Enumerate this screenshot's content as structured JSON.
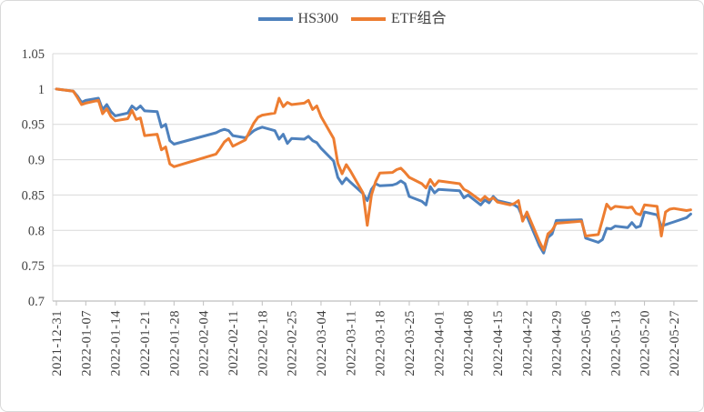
{
  "chart_data": {
    "type": "line",
    "legend_position": "top",
    "grid": true,
    "colors": {
      "gridline": "#D9D9D9",
      "axis_line": "#BFBFBF",
      "text": "#404040",
      "series1": "#4E81BD",
      "series2": "#ED7D31"
    },
    "ylim": [
      0.7,
      1.05
    ],
    "y_ticks": [
      {
        "value": 0.7,
        "label": "0.7"
      },
      {
        "value": 0.75,
        "label": "0.75"
      },
      {
        "value": 0.8,
        "label": "0.8"
      },
      {
        "value": 0.85,
        "label": "0.85"
      },
      {
        "value": 0.9,
        "label": "0.9"
      },
      {
        "value": 0.95,
        "label": "0.95"
      },
      {
        "value": 1,
        "label": "1"
      },
      {
        "value": 1.05,
        "label": "1.05"
      }
    ],
    "x_axis_total_days": 152,
    "x_ticks": [
      {
        "day": 0,
        "label": "2021-12-31"
      },
      {
        "day": 7,
        "label": "2022-01-07"
      },
      {
        "day": 14,
        "label": "2022-01-14"
      },
      {
        "day": 21,
        "label": "2022-01-21"
      },
      {
        "day": 28,
        "label": "2022-01-28"
      },
      {
        "day": 35,
        "label": "2022-02-04"
      },
      {
        "day": 42,
        "label": "2022-02-11"
      },
      {
        "day": 49,
        "label": "2022-02-18"
      },
      {
        "day": 56,
        "label": "2022-02-25"
      },
      {
        "day": 63,
        "label": "2022-03-04"
      },
      {
        "day": 70,
        "label": "2022-03-11"
      },
      {
        "day": 77,
        "label": "2022-03-18"
      },
      {
        "day": 84,
        "label": "2022-03-25"
      },
      {
        "day": 91,
        "label": "2022-04-01"
      },
      {
        "day": 98,
        "label": "2022-04-08"
      },
      {
        "day": 105,
        "label": "2022-04-15"
      },
      {
        "day": 112,
        "label": "2022-04-22"
      },
      {
        "day": 119,
        "label": "2022-04-29"
      },
      {
        "day": 126,
        "label": "2022-05-06"
      },
      {
        "day": 133,
        "label": "2022-05-13"
      },
      {
        "day": 140,
        "label": "2022-05-20"
      },
      {
        "day": 147,
        "label": "2022-05-27"
      }
    ],
    "x_days": [
      0,
      4,
      5,
      6,
      7,
      10,
      11,
      12,
      13,
      14,
      17,
      18,
      19,
      20,
      21,
      24,
      25,
      26,
      27,
      28,
      38,
      39,
      40,
      41,
      42,
      45,
      46,
      47,
      48,
      49,
      52,
      53,
      54,
      55,
      56,
      59,
      60,
      61,
      62,
      63,
      66,
      67,
      68,
      69,
      70,
      73,
      74,
      75,
      76,
      77,
      80,
      81,
      82,
      83,
      84,
      87,
      88,
      89,
      90,
      91,
      96,
      97,
      98,
      101,
      102,
      103,
      104,
      105,
      108,
      109,
      110,
      111,
      112,
      115,
      116,
      117,
      118,
      119,
      125,
      126,
      129,
      130,
      131,
      132,
      133,
      136,
      137,
      138,
      139,
      140,
      143,
      144,
      145,
      146,
      147,
      150,
      151
    ],
    "series": [
      {
        "name": "HS300",
        "color": "#4E81BD",
        "values": [
          1.0,
          0.997,
          0.99,
          0.981,
          0.984,
          0.987,
          0.971,
          0.978,
          0.968,
          0.962,
          0.966,
          0.976,
          0.971,
          0.976,
          0.969,
          0.968,
          0.946,
          0.95,
          0.927,
          0.922,
          0.938,
          0.941,
          0.943,
          0.941,
          0.934,
          0.931,
          0.936,
          0.941,
          0.944,
          0.946,
          0.941,
          0.929,
          0.936,
          0.923,
          0.93,
          0.929,
          0.933,
          0.927,
          0.924,
          0.916,
          0.898,
          0.875,
          0.866,
          0.874,
          0.868,
          0.852,
          0.842,
          0.858,
          0.866,
          0.863,
          0.864,
          0.866,
          0.87,
          0.866,
          0.848,
          0.841,
          0.836,
          0.862,
          0.853,
          0.858,
          0.856,
          0.846,
          0.85,
          0.836,
          0.843,
          0.839,
          0.848,
          0.842,
          0.838,
          0.836,
          0.832,
          0.818,
          0.82,
          0.778,
          0.768,
          0.79,
          0.795,
          0.814,
          0.815,
          0.789,
          0.783,
          0.787,
          0.803,
          0.802,
          0.806,
          0.804,
          0.811,
          0.804,
          0.806,
          0.826,
          0.822,
          0.806,
          0.808,
          0.81,
          0.812,
          0.818,
          0.823
        ]
      },
      {
        "name": "ETF组合",
        "color": "#ED7D31",
        "values": [
          1.0,
          0.997,
          0.988,
          0.978,
          0.98,
          0.984,
          0.965,
          0.972,
          0.961,
          0.955,
          0.958,
          0.97,
          0.957,
          0.959,
          0.934,
          0.936,
          0.914,
          0.918,
          0.894,
          0.89,
          0.908,
          0.916,
          0.925,
          0.93,
          0.919,
          0.928,
          0.94,
          0.952,
          0.96,
          0.963,
          0.966,
          0.987,
          0.975,
          0.981,
          0.978,
          0.98,
          0.984,
          0.971,
          0.976,
          0.961,
          0.93,
          0.895,
          0.88,
          0.893,
          0.884,
          0.853,
          0.807,
          0.85,
          0.869,
          0.881,
          0.882,
          0.886,
          0.888,
          0.882,
          0.875,
          0.866,
          0.86,
          0.872,
          0.863,
          0.87,
          0.866,
          0.858,
          0.855,
          0.842,
          0.848,
          0.843,
          0.846,
          0.84,
          0.836,
          0.838,
          0.842,
          0.813,
          0.826,
          0.784,
          0.772,
          0.795,
          0.8,
          0.81,
          0.813,
          0.792,
          0.794,
          0.815,
          0.837,
          0.83,
          0.834,
          0.832,
          0.833,
          0.824,
          0.822,
          0.836,
          0.834,
          0.792,
          0.826,
          0.83,
          0.831,
          0.828,
          0.829
        ]
      }
    ]
  }
}
